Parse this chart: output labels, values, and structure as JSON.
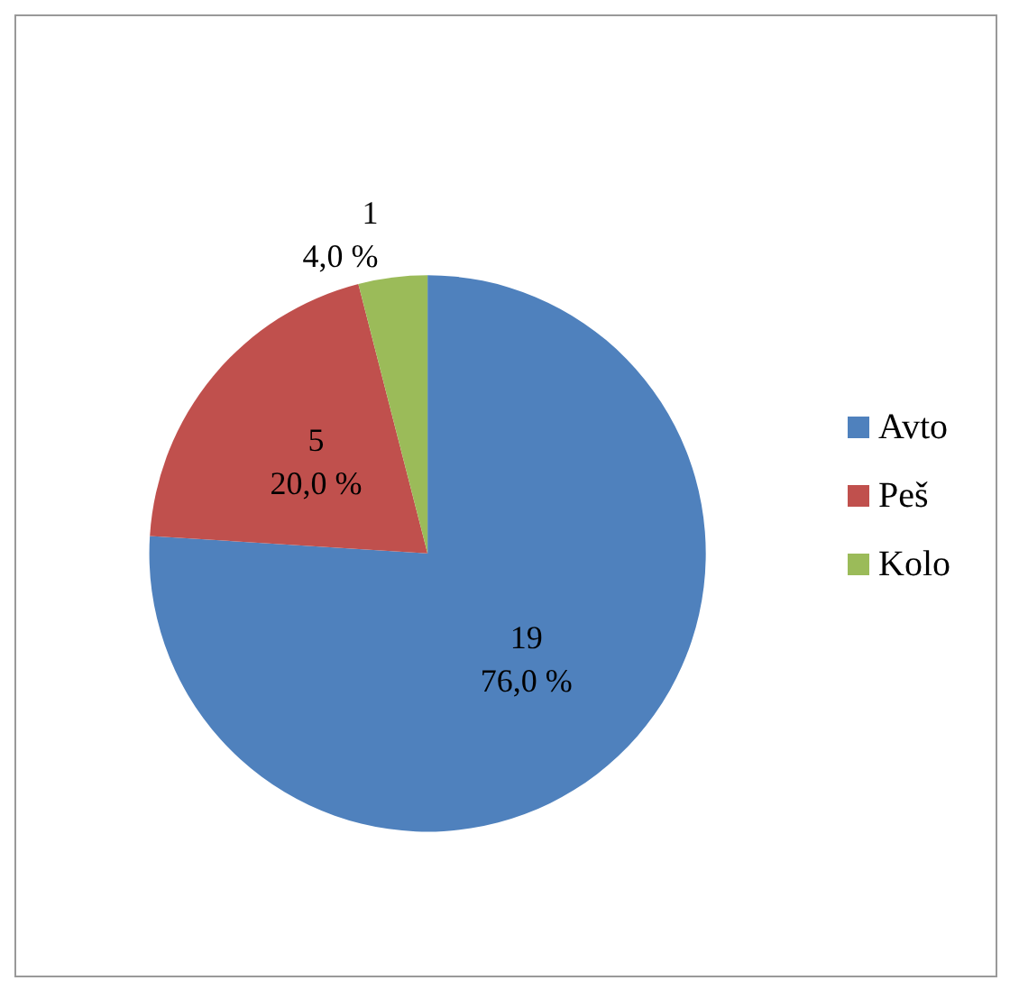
{
  "chart_data": {
    "type": "pie",
    "categories": [
      "Avto",
      "Peš",
      "Kolo"
    ],
    "values": [
      19,
      5,
      1
    ],
    "colors": [
      "#4f81bd",
      "#c0504d",
      "#9bbb59"
    ],
    "value_labels": [
      "19\n76,0 %",
      "5\n20,0 %",
      "1\n4,0 %"
    ],
    "legend": "right"
  }
}
